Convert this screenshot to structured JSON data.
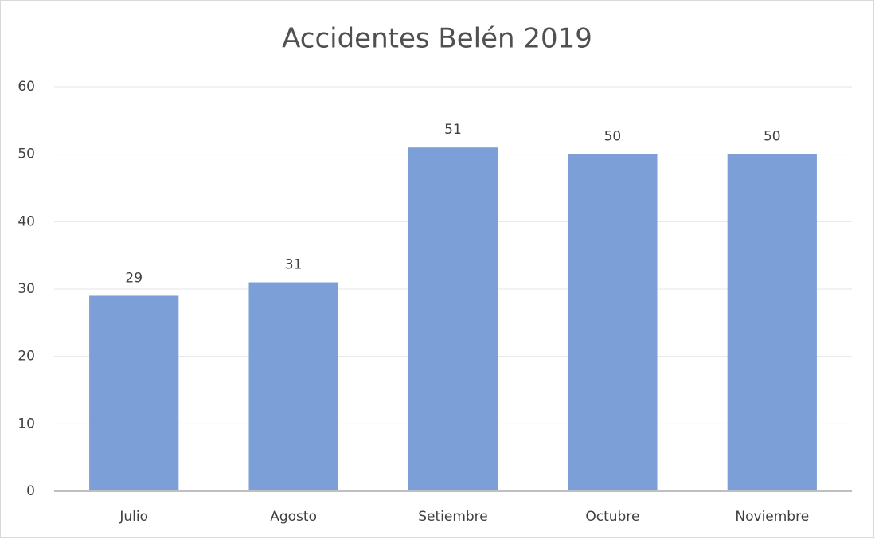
{
  "chart_data": {
    "type": "bar",
    "title": "Accidentes Belén 2019",
    "categories": [
      "Julio",
      "Agosto",
      "Setiembre",
      "Octubre",
      "Noviembre"
    ],
    "values": [
      29,
      31,
      51,
      50,
      50
    ],
    "color": "#7b9fd6",
    "ylim": [
      0,
      60
    ],
    "yticks": [
      0,
      10,
      20,
      30,
      40,
      50,
      60
    ],
    "grid": true
  }
}
